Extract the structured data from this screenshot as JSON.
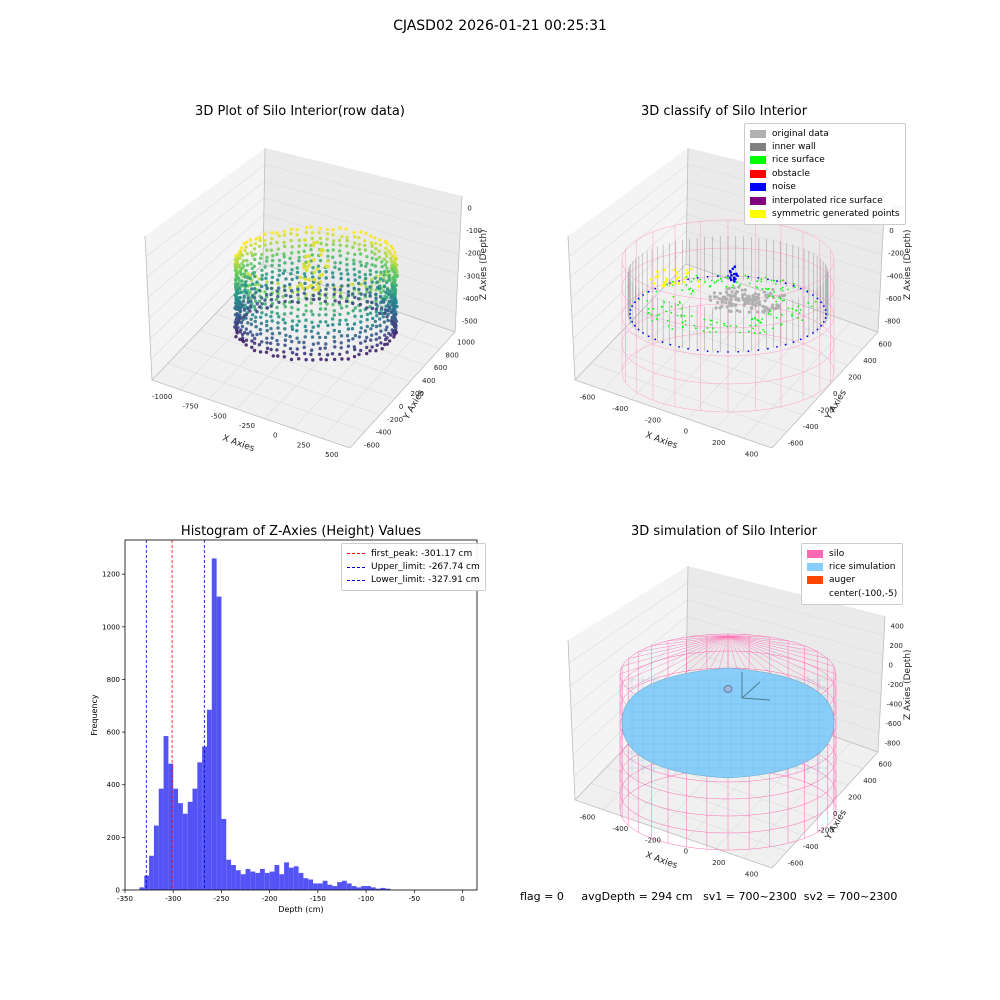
{
  "suptitle": "CJASD02 2026-01-21 00:25:31",
  "footer": {
    "flag": "flag = 0",
    "avg_depth": "avgDepth = 294 cm",
    "sv1": "sv1 = 700~2300",
    "sv2": "sv2 = 700~2300"
  },
  "chart_data": [
    {
      "type": "scatter",
      "title": "3D Plot of Silo Interior(row data)",
      "xlabel": "X Axies",
      "ylabel": "Y Axies",
      "zlabel": "Z Axies (Depth)",
      "x_ticks": [
        "-1000",
        "-750",
        "-500",
        "-250",
        "0",
        "250",
        "500"
      ],
      "y_ticks": [
        "1000",
        "800",
        "600",
        "400",
        "200",
        "0",
        "-200",
        "-400",
        "-600"
      ],
      "z_ticks": [
        "0",
        "-100",
        "-200",
        "-300",
        "-400",
        "-500"
      ],
      "colormap": "viridis"
    },
    {
      "type": "scatter",
      "title": "3D classify of Silo Interior",
      "xlabel": "X Axies",
      "ylabel": "Y Axies",
      "zlabel": "Z Axies (Depth)",
      "x_ticks": [
        "-600",
        "-400",
        "-200",
        "0",
        "200",
        "400"
      ],
      "y_ticks": [
        "600",
        "400",
        "200",
        "0",
        "-200",
        "-400",
        "-600"
      ],
      "z_ticks": [
        "200",
        "0",
        "-200",
        "-400",
        "-600",
        "-800"
      ],
      "z_tick_top": "0",
      "legend_position": "top-right",
      "legend": [
        {
          "label": "original data",
          "color": "#b0b0b0"
        },
        {
          "label": "inner wall",
          "color": "#808080"
        },
        {
          "label": "rice surface",
          "color": "#00ff00"
        },
        {
          "label": "obstacle",
          "color": "#ff0000"
        },
        {
          "label": "noise",
          "color": "#0000ff"
        },
        {
          "label": "interpolated rice surface",
          "color": "#800080"
        },
        {
          "label": "symmetric generated points",
          "color": "#ffff00"
        }
      ]
    },
    {
      "type": "bar",
      "title": "Histogram of Z-Axies (Height) Values",
      "xlabel": "Depth (cm)",
      "ylabel": "Frequency",
      "xlim": [
        -350,
        15
      ],
      "ylim": [
        0,
        1330
      ],
      "x_ticks": [
        -350,
        -300,
        -250,
        -200,
        -150,
        -100,
        -50,
        0
      ],
      "y_ticks": [
        0,
        200,
        400,
        600,
        800,
        1000,
        1200
      ],
      "bar_color": "#4b4bf5",
      "bin_width": 5,
      "bins": [
        {
          "x": -335,
          "v": 10
        },
        {
          "x": -330,
          "v": 55
        },
        {
          "x": -325,
          "v": 130
        },
        {
          "x": -320,
          "v": 245
        },
        {
          "x": -315,
          "v": 385
        },
        {
          "x": -310,
          "v": 585
        },
        {
          "x": -305,
          "v": 480
        },
        {
          "x": -300,
          "v": 385
        },
        {
          "x": -295,
          "v": 330
        },
        {
          "x": -290,
          "v": 290
        },
        {
          "x": -285,
          "v": 335
        },
        {
          "x": -280,
          "v": 385
        },
        {
          "x": -275,
          "v": 485
        },
        {
          "x": -270,
          "v": 545
        },
        {
          "x": -265,
          "v": 685
        },
        {
          "x": -260,
          "v": 1260
        },
        {
          "x": -255,
          "v": 1115
        },
        {
          "x": -250,
          "v": 270
        },
        {
          "x": -245,
          "v": 115
        },
        {
          "x": -240,
          "v": 95
        },
        {
          "x": -235,
          "v": 75
        },
        {
          "x": -230,
          "v": 60
        },
        {
          "x": -225,
          "v": 80
        },
        {
          "x": -220,
          "v": 70
        },
        {
          "x": -215,
          "v": 65
        },
        {
          "x": -210,
          "v": 80
        },
        {
          "x": -205,
          "v": 65
        },
        {
          "x": -200,
          "v": 70
        },
        {
          "x": -195,
          "v": 95
        },
        {
          "x": -190,
          "v": 60
        },
        {
          "x": -185,
          "v": 105
        },
        {
          "x": -180,
          "v": 85
        },
        {
          "x": -175,
          "v": 90
        },
        {
          "x": -170,
          "v": 65
        },
        {
          "x": -165,
          "v": 45
        },
        {
          "x": -160,
          "v": 40
        },
        {
          "x": -155,
          "v": 25
        },
        {
          "x": -150,
          "v": 25
        },
        {
          "x": -145,
          "v": 35
        },
        {
          "x": -140,
          "v": 20
        },
        {
          "x": -135,
          "v": 15
        },
        {
          "x": -130,
          "v": 30
        },
        {
          "x": -125,
          "v": 35
        },
        {
          "x": -120,
          "v": 25
        },
        {
          "x": -115,
          "v": 15
        },
        {
          "x": -110,
          "v": 10
        },
        {
          "x": -105,
          "v": 15
        },
        {
          "x": -100,
          "v": 15
        },
        {
          "x": -95,
          "v": 10
        },
        {
          "x": -90,
          "v": 5
        },
        {
          "x": -85,
          "v": 8
        },
        {
          "x": -80,
          "v": 5
        }
      ],
      "vlines": [
        {
          "label": "first_peak: -301.17 cm",
          "x": -301.17,
          "color": "#ff0000"
        },
        {
          "label": "Upper_limit: -267.74 cm",
          "x": -267.74,
          "color": "#0000cc"
        },
        {
          "label": "Lower_limit: -327.91 cm",
          "x": -327.91,
          "color": "#0000cc"
        }
      ],
      "legend_position": "top-right"
    },
    {
      "type": "scatter",
      "title": "3D simulation of Silo Interior",
      "xlabel": "X Axies",
      "ylabel": "Y Axies",
      "zlabel": "Z Axies (Depth)",
      "x_ticks": [
        "-600",
        "-400",
        "-200",
        "0",
        "200",
        "400"
      ],
      "y_ticks": [
        "600",
        "400",
        "200",
        "0",
        "-200",
        "-400",
        "-600"
      ],
      "z_ticks": [
        "400",
        "200",
        "0",
        "-200",
        "-400",
        "-600",
        "-800"
      ],
      "legend_position": "top-right",
      "legend": [
        {
          "label": "silo",
          "color": "#ff69b4"
        },
        {
          "label": "rice simulation",
          "color": "#87cefa"
        },
        {
          "label": "auger",
          "color": "#ff4500"
        },
        {
          "label": "center(-100,-5)",
          "color": ""
        }
      ]
    }
  ]
}
